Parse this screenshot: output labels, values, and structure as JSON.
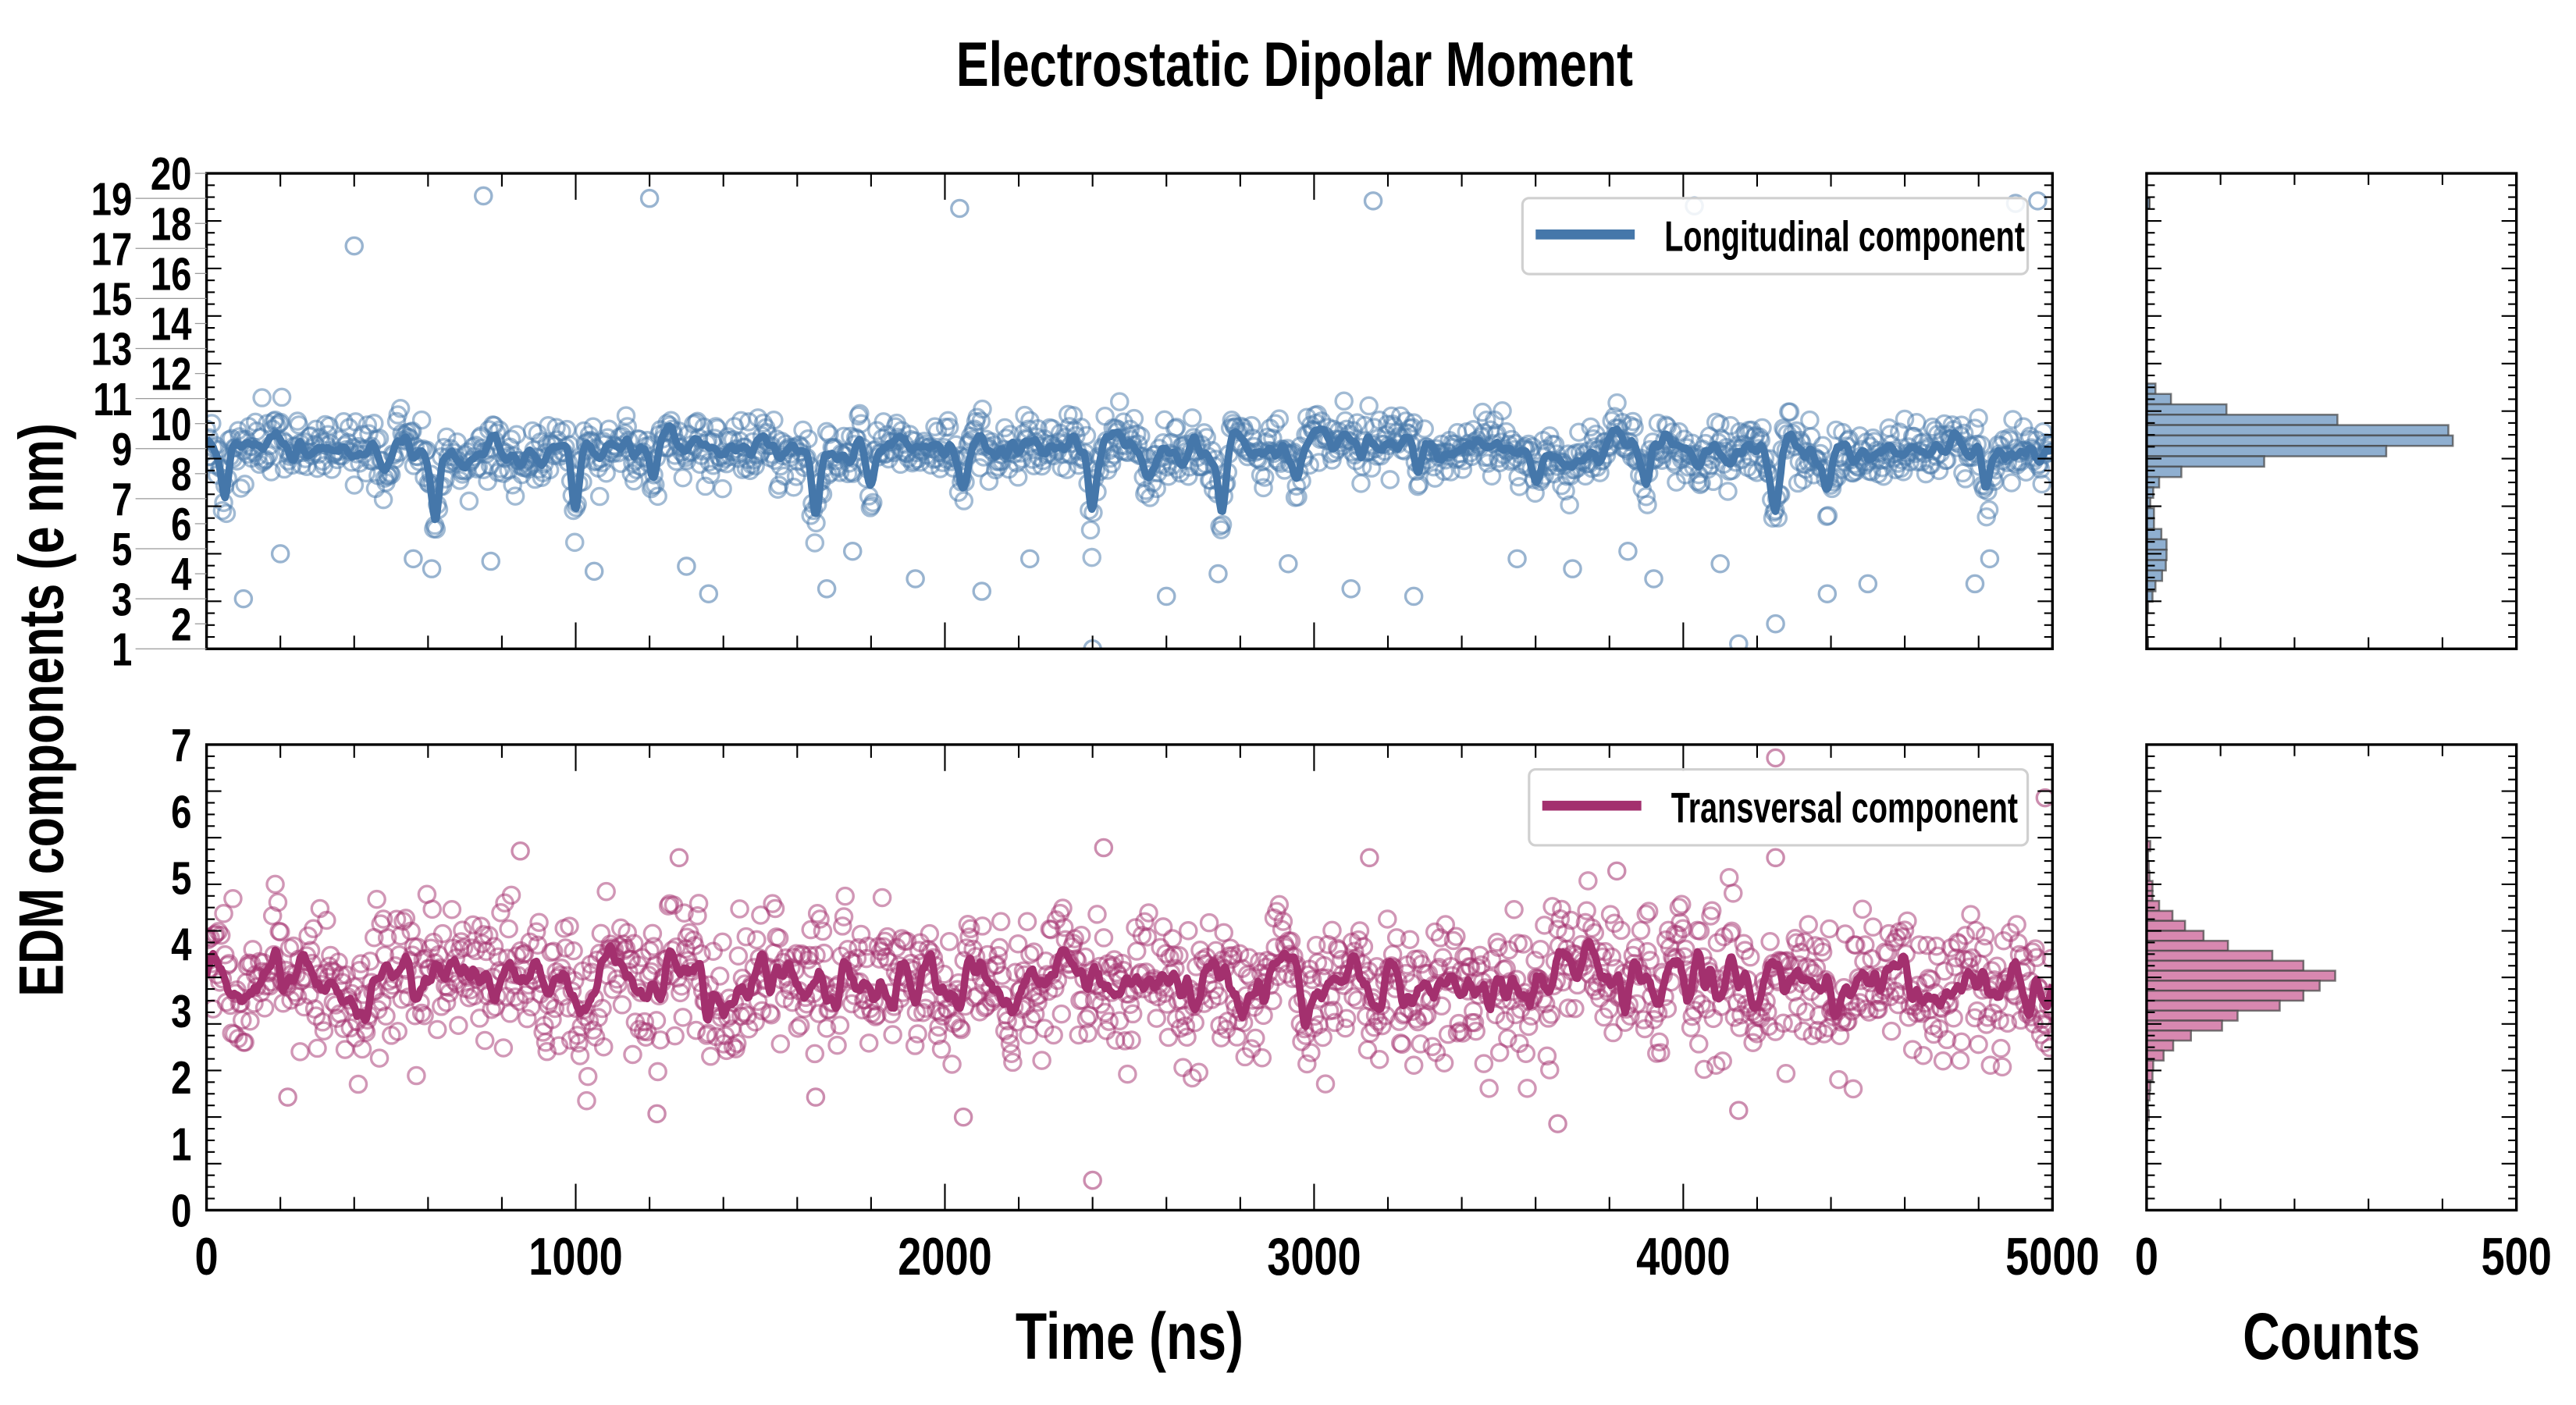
{
  "chart_data": [
    {
      "type": "scatter",
      "panel": "top",
      "title": "Electrostatic Dipolar Moment",
      "xlabel": "Time (ns)",
      "ylabel": "EDM components (e nm)",
      "xlim": [
        0,
        5000
      ],
      "ylim": [
        1,
        20
      ],
      "xticks": [
        "0",
        "1000",
        "2000",
        "3000",
        "4000",
        "5000"
      ],
      "yticks": [
        "1",
        "2",
        "3",
        "4",
        "5",
        "6",
        "7",
        "8",
        "9",
        "10",
        "11",
        "12",
        "13",
        "14",
        "15",
        "16",
        "17",
        "18",
        "19",
        "20"
      ],
      "legend": {
        "label": "Longitudinal component",
        "position": "top-right"
      },
      "color": "#4577aa",
      "series": {
        "baseline": 9.0,
        "line_noise": 0.35,
        "scatter_spread": 0.55,
        "n_points": 1400,
        "dips": [
          {
            "t": 50,
            "min": 6.3
          },
          {
            "t": 620,
            "min": 6.3
          },
          {
            "t": 1000,
            "min": 6.2
          },
          {
            "t": 1210,
            "min": 7.6
          },
          {
            "t": 1650,
            "min": 6.5
          },
          {
            "t": 1800,
            "min": 7.8
          },
          {
            "t": 2050,
            "min": 7.5
          },
          {
            "t": 2400,
            "min": 6.4
          },
          {
            "t": 2750,
            "min": 6.4
          },
          {
            "t": 2950,
            "min": 7.7
          },
          {
            "t": 3280,
            "min": 7.0
          },
          {
            "t": 3600,
            "min": 7.5
          },
          {
            "t": 3900,
            "min": 7.0
          },
          {
            "t": 4250,
            "min": 6.3
          },
          {
            "t": 4390,
            "min": 6.9
          },
          {
            "t": 4820,
            "min": 7.4
          }
        ],
        "outliers": [
          [
            400,
            17.1
          ],
          [
            750,
            19.1
          ],
          [
            1200,
            19.0
          ],
          [
            2040,
            18.6
          ],
          [
            3160,
            18.9
          ],
          [
            4030,
            18.7
          ],
          [
            4900,
            18.8
          ],
          [
            4960,
            18.9
          ],
          [
            2400,
            1.0
          ],
          [
            4150,
            1.2
          ],
          [
            4250,
            2.0
          ],
          [
            100,
            3.0
          ],
          [
            200,
            4.8
          ],
          [
            560,
            4.6
          ],
          [
            610,
            4.2
          ],
          [
            770,
            4.5
          ],
          [
            1050,
            4.1
          ],
          [
            1300,
            4.3
          ],
          [
            1360,
            3.2
          ],
          [
            1680,
            3.4
          ],
          [
            1750,
            4.9
          ],
          [
            1920,
            3.8
          ],
          [
            2100,
            3.3
          ],
          [
            2230,
            4.6
          ],
          [
            2600,
            3.1
          ],
          [
            2740,
            4.0
          ],
          [
            2930,
            4.4
          ],
          [
            3100,
            3.4
          ],
          [
            3270,
            3.1
          ],
          [
            3550,
            4.6
          ],
          [
            3700,
            4.2
          ],
          [
            3850,
            4.9
          ],
          [
            3920,
            3.8
          ],
          [
            4100,
            4.4
          ],
          [
            4390,
            3.2
          ],
          [
            4500,
            3.6
          ],
          [
            4790,
            3.6
          ],
          [
            4830,
            4.6
          ]
        ]
      },
      "histogram": {
        "xlabel": "Counts",
        "xlim": [
          0,
          500
        ],
        "xticks": [
          "0",
          "500"
        ],
        "bin_top": 11.6,
        "bin_width": 0.415,
        "counts": [
          12,
          33,
          108,
          258,
          408,
          414,
          324,
          159,
          47,
          17,
          9,
          5,
          10,
          10,
          20,
          27,
          27,
          26,
          21,
          12,
          8,
          2
        ],
        "extra_bins": [
          [
            18.8,
            4
          ],
          [
            1.2,
            2
          ]
        ],
        "color": "#8fafd0"
      }
    },
    {
      "type": "scatter",
      "panel": "bottom",
      "xlabel": "Time (ns)",
      "xlim": [
        0,
        5000
      ],
      "ylim": [
        0,
        7
      ],
      "xticks": [
        "0",
        "1000",
        "2000",
        "3000",
        "4000",
        "5000"
      ],
      "yticks": [
        "0",
        "1",
        "2",
        "3",
        "4",
        "5",
        "6",
        "7"
      ],
      "legend": {
        "label": "Transversal component",
        "position": "top-right"
      },
      "color": "#a3306e",
      "series": {
        "baseline": 3.4,
        "line_noise": 0.28,
        "scatter_spread": 0.48,
        "n_points": 1400,
        "dips": [],
        "outliers": [
          [
            2400,
            0.45
          ],
          [
            2050,
            1.4
          ],
          [
            1220,
            1.45
          ],
          [
            3660,
            1.3
          ],
          [
            4150,
            1.5
          ],
          [
            220,
            1.7
          ],
          [
            1650,
            1.7
          ],
          [
            4250,
            6.8
          ],
          [
            4980,
            6.2
          ],
          [
            850,
            5.4
          ],
          [
            1280,
            5.3
          ],
          [
            2430,
            5.45
          ],
          [
            3150,
            5.3
          ],
          [
            3820,
            5.1
          ],
          [
            4250,
            5.3
          ]
        ]
      },
      "histogram": {
        "xlabel": "Counts",
        "xlim": [
          0,
          500
        ],
        "xticks": [
          "0",
          "500"
        ],
        "bin_top": 5.55,
        "bin_width": 0.15,
        "counts": [
          5,
          2,
          3,
          4,
          8,
          8,
          17,
          35,
          52,
          77,
          110,
          170,
          212,
          255,
          234,
          212,
          180,
          123,
          102,
          60,
          36,
          23,
          9,
          8,
          5,
          4,
          2,
          3,
          1
        ],
        "color": "#d888b0"
      }
    }
  ]
}
